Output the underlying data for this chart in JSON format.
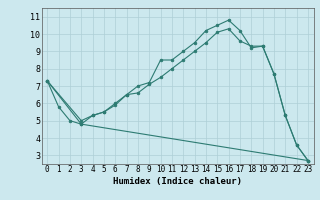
{
  "xlabel": "Humidex (Indice chaleur)",
  "bg_color": "#cce8ee",
  "grid_color": "#aecfd6",
  "line_color": "#2d7b72",
  "xlim": [
    -0.5,
    23.5
  ],
  "ylim": [
    2.5,
    11.5
  ],
  "xticks": [
    0,
    1,
    2,
    3,
    4,
    5,
    6,
    7,
    8,
    9,
    10,
    11,
    12,
    13,
    14,
    15,
    16,
    17,
    18,
    19,
    20,
    21,
    22,
    23
  ],
  "yticks": [
    3,
    4,
    5,
    6,
    7,
    8,
    9,
    10,
    11
  ],
  "line1_x": [
    0,
    1,
    2,
    3,
    4,
    5,
    6,
    7,
    8,
    9,
    10,
    11,
    12,
    13,
    14,
    15,
    16,
    17,
    18,
    19,
    20,
    21,
    22,
    23
  ],
  "line1_y": [
    7.3,
    5.8,
    5.0,
    4.8,
    5.3,
    5.5,
    5.9,
    6.5,
    7.0,
    7.2,
    8.5,
    8.5,
    9.0,
    9.5,
    10.2,
    10.5,
    10.8,
    10.2,
    9.2,
    9.3,
    7.7,
    5.3,
    3.6,
    2.7
  ],
  "line2_x": [
    0,
    3,
    4,
    5,
    6,
    7,
    8,
    9,
    10,
    11,
    12,
    13,
    14,
    15,
    16,
    17,
    18,
    19,
    20,
    21,
    22,
    23
  ],
  "line2_y": [
    7.3,
    5.0,
    5.3,
    5.5,
    6.0,
    6.5,
    6.6,
    7.1,
    7.5,
    8.0,
    8.5,
    9.0,
    9.5,
    10.1,
    10.3,
    9.6,
    9.3,
    9.3,
    7.7,
    5.3,
    3.6,
    2.7
  ],
  "line3_x": [
    0,
    3,
    23
  ],
  "line3_y": [
    7.3,
    4.8,
    2.7
  ],
  "xlabel_fontsize": 6.5,
  "tick_fontsize": 5.5
}
